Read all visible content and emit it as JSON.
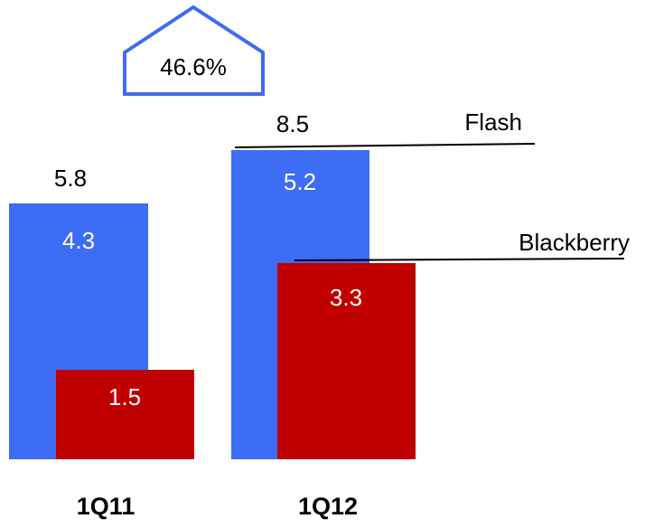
{
  "chart_data": {
    "type": "bar",
    "categories": [
      "1Q11",
      "1Q12"
    ],
    "series": [
      {
        "name": "Flash",
        "values": [
          4.3,
          5.2
        ],
        "color": "#3d6cf5"
      },
      {
        "name": "Blackberry",
        "values": [
          1.5,
          3.3
        ],
        "color": "#c00000"
      }
    ],
    "totals": [
      "5.8",
      "8.5"
    ],
    "flash_labels": [
      "4.3",
      "5.2"
    ],
    "blackberry_labels": [
      "1.5",
      "3.3"
    ],
    "growth_callout": "46.6%",
    "legend": [
      "Flash",
      "Blackberry"
    ],
    "title": "",
    "xlabel": "",
    "ylabel": "",
    "grid": false
  }
}
